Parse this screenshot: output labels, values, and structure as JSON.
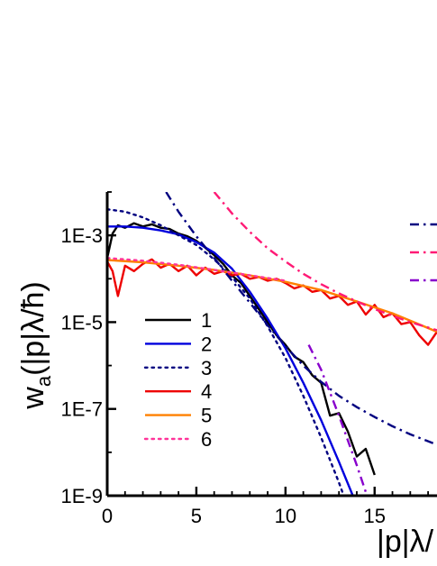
{
  "chart_data": {
    "type": "line",
    "xlabel": "|p|λ/",
    "ylabel": "w_a(|p|λ/ħ)",
    "ylabel_parts": {
      "w": "w",
      "sub": "a",
      "arg": "(|p|λ/ħ)"
    },
    "xlim": [
      0,
      18.5
    ],
    "ylim": [
      1e-09,
      0.01
    ],
    "yscale": "log",
    "x_ticks": [
      0,
      5,
      10,
      15
    ],
    "x_tick_labels": [
      "0",
      "5",
      "10",
      "15"
    ],
    "y_ticks": [
      1e-09,
      1e-07,
      1e-05,
      0.001
    ],
    "y_tick_labels": [
      "1E-9",
      "1E-7",
      "1E-5",
      "1E-3"
    ],
    "grid": false,
    "legend_placement": "center-left",
    "legend_entries": [
      {
        "label": "1",
        "color": "#000000",
        "style": "solid"
      },
      {
        "label": "2",
        "color": "#0000dd",
        "style": "solid"
      },
      {
        "label": "3",
        "color": "#000080",
        "style": "dot"
      },
      {
        "label": "4",
        "color": "#ee0000",
        "style": "solid"
      },
      {
        "label": "5",
        "color": "#ff8000",
        "style": "solid"
      },
      {
        "label": "6",
        "color": "#ff3399",
        "style": "dot"
      }
    ],
    "series": [
      {
        "name": "1",
        "color": "#000000",
        "style": "solid",
        "x": [
          0,
          0.3,
          0.6,
          1,
          1.5,
          2,
          2.5,
          3,
          3.5,
          4,
          4.5,
          5,
          5.5,
          6,
          6.5,
          7,
          7.5,
          8,
          8.5,
          9,
          9.5,
          10,
          10.5,
          11,
          11.5,
          12,
          12.5,
          13,
          13.5,
          14,
          14.5,
          15
        ],
        "y": [
          0.0003,
          0.0011,
          0.0017,
          0.0015,
          0.0019,
          0.0016,
          0.0018,
          0.0015,
          0.0014,
          0.0011,
          0.00095,
          0.00075,
          0.00052,
          0.00035,
          0.00022,
          0.00012,
          8e-05,
          4e-05,
          2e-05,
          1e-05,
          5e-06,
          3e-06,
          1.6e-06,
          1.2e-06,
          6e-07,
          4e-07,
          7e-08,
          8e-08,
          3e-08,
          8e-09,
          1.2e-08,
          3e-09
        ]
      },
      {
        "name": "2",
        "color": "#0000dd",
        "style": "solid",
        "x": [
          0,
          1,
          2,
          3,
          4,
          5,
          6,
          7,
          8,
          9,
          10,
          11,
          12,
          13,
          14
        ],
        "y": [
          0.0016,
          0.0016,
          0.0015,
          0.0013,
          0.00105,
          0.0007,
          0.0004,
          0.00017,
          5e-05,
          1.2e-05,
          2.5e-06,
          4e-07,
          5.5e-08,
          6e-09,
          6e-10
        ]
      },
      {
        "name": "3",
        "color": "#000080",
        "style": "dot",
        "x": [
          0,
          1,
          2,
          3,
          4,
          5,
          6,
          7,
          8,
          9,
          10,
          11,
          12,
          13,
          14
        ],
        "y": [
          0.004,
          0.0035,
          0.0026,
          0.0017,
          0.001,
          0.0006,
          0.00028,
          0.00011,
          3.5e-05,
          8e-06,
          1.5e-06,
          2e-07,
          2.2e-08,
          2e-09,
          1.5e-10
        ]
      },
      {
        "name": "4",
        "color": "#ee0000",
        "style": "solid",
        "x": [
          0,
          0.3,
          0.6,
          1,
          1.5,
          2,
          2.5,
          3,
          3.5,
          4,
          4.5,
          5,
          5.5,
          6,
          6.5,
          7,
          7.5,
          8,
          8.5,
          9,
          9.5,
          10,
          10.5,
          11,
          11.5,
          12,
          12.5,
          13,
          13.5,
          14,
          14.5,
          15,
          15.5,
          16,
          16.5,
          17,
          17.5,
          18,
          18.5
        ],
        "y": [
          0.00025,
          0.00015,
          4e-05,
          0.0002,
          0.00015,
          0.00022,
          0.00028,
          0.00018,
          0.00022,
          0.00015,
          0.0002,
          0.00012,
          0.00018,
          0.00013,
          0.00015,
          0.00012,
          0.00013,
          0.0001,
          0.00011,
          9e-05,
          0.0001,
          8e-05,
          6e-05,
          7e-05,
          5e-05,
          5.5e-05,
          3.5e-05,
          4e-05,
          2.5e-05,
          3e-05,
          1.5e-05,
          2.5e-05,
          1.3e-05,
          1.6e-05,
          9e-06,
          1e-05,
          5e-06,
          3e-06,
          6e-06
        ]
      },
      {
        "name": "5",
        "color": "#ff8000",
        "style": "solid",
        "x": [
          0,
          2,
          4,
          6,
          8,
          10,
          12,
          14,
          16,
          18.5
        ],
        "y": [
          0.00027,
          0.00024,
          0.0002,
          0.00016,
          0.00012,
          8.5e-05,
          5.5e-05,
          3e-05,
          1.6e-05,
          6e-06
        ]
      },
      {
        "name": "6",
        "color": "#ff3399",
        "style": "dot",
        "x": [
          0,
          2,
          4,
          6,
          8,
          10
        ],
        "y": [
          0.0003,
          0.00026,
          0.00021,
          0.00016,
          0.00012,
          9e-05
        ]
      },
      {
        "name": "",
        "color": "#000080",
        "style": "dashdot",
        "x": [
          3.3,
          4,
          5,
          6,
          7,
          8,
          9,
          10,
          11,
          12,
          13,
          14,
          15,
          16,
          17,
          18.5
        ],
        "y": [
          0.01,
          0.0035,
          0.00095,
          0.0003,
          9e-05,
          2.8e-05,
          8.5e-06,
          2.8e-06,
          1e-06,
          4.2e-07,
          2e-07,
          1.1e-07,
          6.5e-08,
          4e-08,
          2.6e-08,
          1.5e-08
        ]
      },
      {
        "name": "",
        "color": "#ff1a75",
        "style": "dashdot",
        "x": [
          6,
          7,
          8,
          9,
          10,
          11,
          12,
          13,
          14,
          15,
          16,
          17,
          18.5
        ],
        "y": [
          0.01,
          0.0032,
          0.0012,
          0.0005,
          0.00025,
          0.00013,
          7.5e-05,
          4.6e-05,
          3e-05,
          2e-05,
          1.4e-05,
          1e-05,
          6.5e-06
        ]
      },
      {
        "name": "",
        "color": "#8800cc",
        "style": "dashdot",
        "x": [
          11.3,
          12,
          13,
          14,
          15
        ],
        "y": [
          3e-06,
          8e-07,
          7e-08,
          5e-09,
          3e-10
        ]
      }
    ],
    "top_right_legend": [
      {
        "color": "#000080",
        "style": "dashdot"
      },
      {
        "color": "#ff1a75",
        "style": "dashdot"
      },
      {
        "color": "#8800cc",
        "style": "dashdot"
      }
    ]
  }
}
